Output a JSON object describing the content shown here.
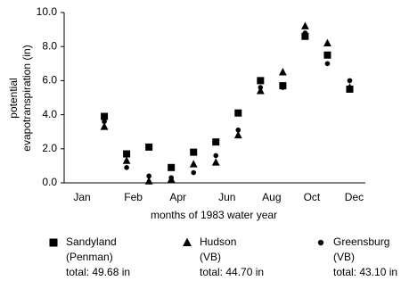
{
  "chart_data": {
    "type": "scatter",
    "x_label": "months of 1983 water year",
    "y_label": [
      "potential",
      "evapotranspiration (in)"
    ],
    "x": [
      1,
      2,
      3,
      4,
      5,
      6,
      7,
      8,
      9,
      10,
      11,
      12
    ],
    "xlim": [
      -0.8,
      12.7
    ],
    "xticks": [
      {
        "value": 0,
        "label": "Jan"
      },
      {
        "value": 2.3,
        "label": "Feb"
      },
      {
        "value": 4.3,
        "label": "Apr"
      },
      {
        "value": 6.5,
        "label": "Jun"
      },
      {
        "value": 8.5,
        "label": "Aug"
      },
      {
        "value": 10.3,
        "label": "Oct"
      },
      {
        "value": 12.2,
        "label": "Dec"
      }
    ],
    "ylim": [
      0,
      10
    ],
    "yticks": [
      {
        "value": 0,
        "label": "0.0"
      },
      {
        "value": 2,
        "label": "2.0"
      },
      {
        "value": 4,
        "label": "4.0"
      },
      {
        "value": 6,
        "label": "6.0"
      },
      {
        "value": 8,
        "label": "8.0"
      },
      {
        "value": 10,
        "label": "10.0"
      }
    ],
    "series": [
      {
        "name": "Sandyland",
        "method": "(Penman)",
        "total": "total: 49.68 in",
        "marker": "square",
        "color": "#000000",
        "values": [
          3.9,
          1.7,
          2.1,
          0.9,
          1.8,
          2.4,
          4.1,
          6.0,
          5.7,
          8.6,
          7.5,
          5.5
        ]
      },
      {
        "name": "Hudson",
        "method": "(VB)",
        "total": "total: 44.70 in",
        "marker": "triangle",
        "color": "#000000",
        "values": [
          3.3,
          1.3,
          0.1,
          0.2,
          1.1,
          1.2,
          2.8,
          5.4,
          6.5,
          9.2,
          8.2,
          5.6
        ]
      },
      {
        "name": "Greensburg",
        "method": "(VB)",
        "total": "total: 43.10 in",
        "marker": "circle",
        "color": "#000000",
        "values": [
          3.6,
          0.9,
          0.4,
          0.3,
          0.6,
          1.6,
          3.1,
          5.6,
          5.6,
          8.8,
          7.0,
          6.0
        ]
      }
    ]
  }
}
